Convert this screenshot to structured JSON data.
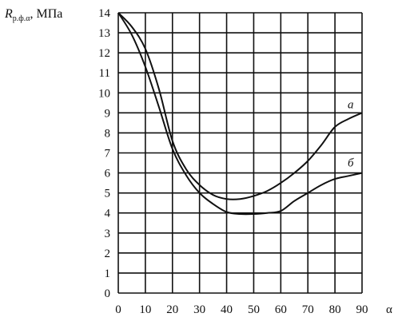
{
  "chart_data": {
    "type": "line",
    "ylabel": {
      "main": "R",
      "sub": "р.ф.α",
      "unit": ", МПа"
    },
    "xlabel": "α",
    "xlim": [
      0,
      90
    ],
    "ylim": [
      0,
      14
    ],
    "xticks": [
      "0",
      "10",
      "20",
      "30",
      "40",
      "50",
      "60",
      "70",
      "80",
      "90"
    ],
    "yticks": [
      "0",
      "1",
      "2",
      "3",
      "4",
      "5",
      "6",
      "7",
      "8",
      "9",
      "10",
      "11",
      "12",
      "13",
      "14"
    ],
    "grid": true,
    "series": [
      {
        "name": "а",
        "x": [
          0,
          5,
          10,
          15,
          20,
          25,
          30,
          35,
          40,
          45,
          50,
          55,
          60,
          65,
          70,
          75,
          80,
          85,
          90
        ],
        "y": [
          14,
          13.3,
          12.2,
          10.2,
          7.6,
          6.2,
          5.4,
          4.9,
          4.7,
          4.7,
          4.85,
          5.1,
          5.5,
          6.0,
          6.6,
          7.4,
          8.3,
          8.7,
          9.0
        ]
      },
      {
        "name": "б",
        "x": [
          0,
          5,
          10,
          15,
          20,
          25,
          30,
          35,
          40,
          45,
          50,
          55,
          60,
          65,
          70,
          75,
          80,
          85,
          90
        ],
        "y": [
          14,
          12.9,
          11.3,
          9.3,
          7.2,
          5.9,
          5.0,
          4.45,
          4.05,
          3.95,
          3.95,
          4.0,
          4.1,
          4.6,
          5.0,
          5.4,
          5.7,
          5.85,
          6.0
        ]
      }
    ]
  }
}
